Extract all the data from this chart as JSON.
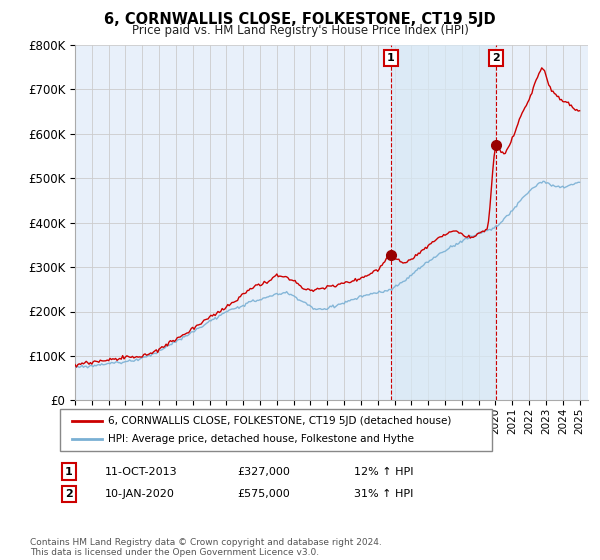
{
  "title": "6, CORNWALLIS CLOSE, FOLKESTONE, CT19 5JD",
  "subtitle": "Price paid vs. HM Land Registry's House Price Index (HPI)",
  "ylabel_ticks": [
    "£0",
    "£100K",
    "£200K",
    "£300K",
    "£400K",
    "£500K",
    "£600K",
    "£700K",
    "£800K"
  ],
  "ylim": [
    0,
    800000
  ],
  "xlim_start": 1995.0,
  "xlim_end": 2025.5,
  "transaction1_date": 2013.78,
  "transaction1_price": 327000,
  "transaction1_label": "1",
  "transaction2_date": 2020.03,
  "transaction2_price": 575000,
  "transaction2_label": "2",
  "line_color_property": "#cc0000",
  "line_color_hpi": "#7ab0d4",
  "shade_color": "#d8e8f5",
  "legend_property": "6, CORNWALLIS CLOSE, FOLKESTONE, CT19 5JD (detached house)",
  "legend_hpi": "HPI: Average price, detached house, Folkestone and Hythe",
  "annotation1_date": "11-OCT-2013",
  "annotation1_price": "£327,000",
  "annotation1_hpi": "12% ↑ HPI",
  "annotation2_date": "10-JAN-2020",
  "annotation2_price": "£575,000",
  "annotation2_hpi": "31% ↑ HPI",
  "footer": "Contains HM Land Registry data © Crown copyright and database right 2024.\nThis data is licensed under the Open Government Licence v3.0.",
  "background_color": "#ffffff",
  "grid_color": "#cccccc",
  "plot_bg_color": "#e8f0fa"
}
